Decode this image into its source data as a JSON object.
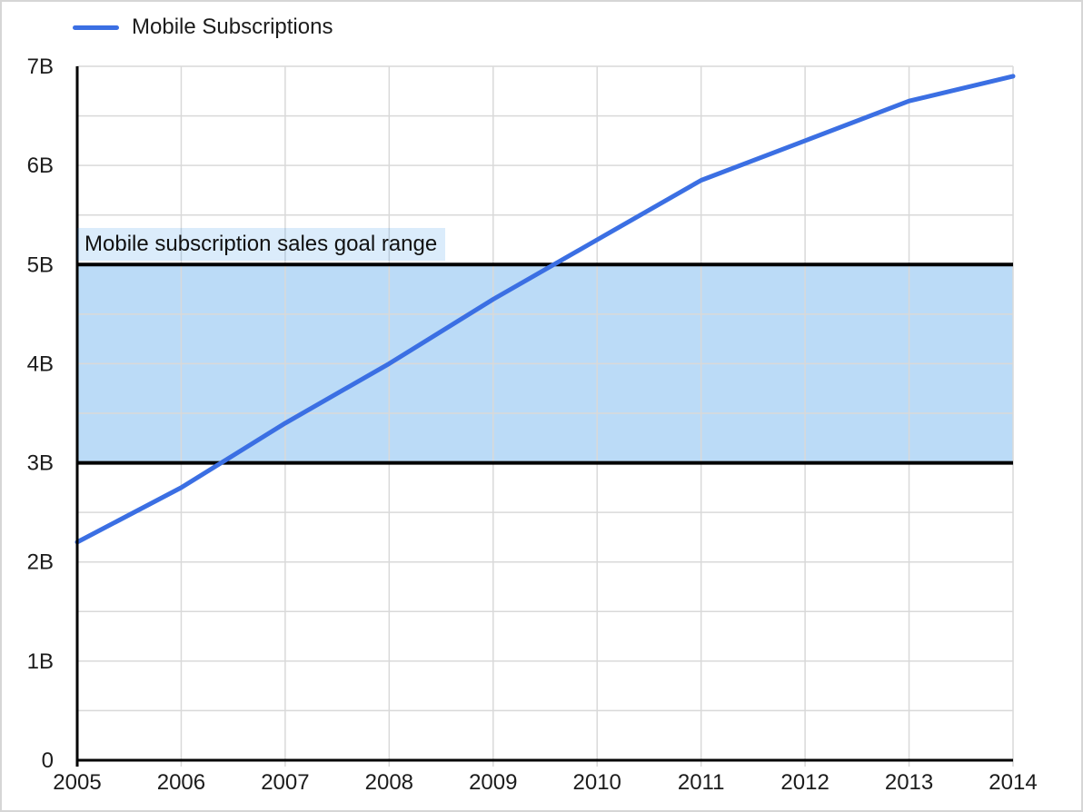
{
  "chart_data": {
    "type": "line",
    "title": "",
    "xlabel": "",
    "ylabel": "",
    "categories": [
      "2005",
      "2006",
      "2007",
      "2008",
      "2009",
      "2010",
      "2011",
      "2012",
      "2013",
      "2014"
    ],
    "series": [
      {
        "name": "Mobile Subscriptions",
        "color": "#3b6fe3",
        "values": [
          2.2,
          2.75,
          3.4,
          4.0,
          4.65,
          5.25,
          5.85,
          6.25,
          6.65,
          6.9
        ]
      }
    ],
    "ylim": [
      0,
      7
    ],
    "y_ticks": [
      {
        "value": 0,
        "label": "0"
      },
      {
        "value": 1,
        "label": "1B"
      },
      {
        "value": 2,
        "label": "2B"
      },
      {
        "value": 3,
        "label": "3B"
      },
      {
        "value": 4,
        "label": "4B"
      },
      {
        "value": 5,
        "label": "5B"
      },
      {
        "value": 6,
        "label": "6B"
      },
      {
        "value": 7,
        "label": "7B"
      }
    ],
    "minor_gridline_step": 0.5,
    "grid": true,
    "legend_position": "top-left",
    "band": {
      "from": 3,
      "to": 5,
      "label": "Mobile subscription sales goal range",
      "fill": "#1e88e5",
      "fill_opacity": 0.3,
      "label_fill_opacity": 0.16,
      "border_color": "#000000"
    },
    "axis_color": "#000000",
    "gridline_color": "#d9d9d9",
    "text_color": "#1c1c1c"
  }
}
